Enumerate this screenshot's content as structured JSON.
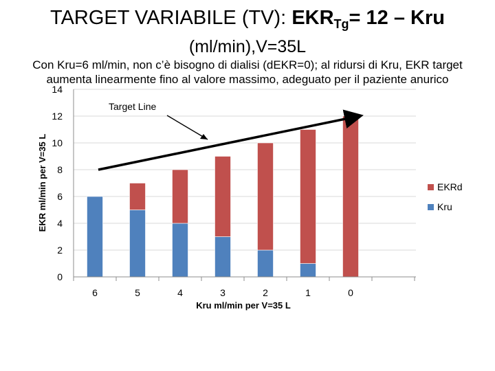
{
  "header": {
    "title_prefix": "TARGET VARIABILE (TV): ",
    "title_bold": "EKR",
    "title_sub": "Tg",
    "title_suffix": "= 12 – Kru",
    "title_line2": "(ml/min),V=35L",
    "description": "Con Kru=6 ml/min, non c’è bisogno di dialisi (dEKR=0); al ridursi di Kru, EKR target aumenta linearmente fino al valore massimo, adeguato per il paziente anurico"
  },
  "colors": {
    "kru": "#4f81bd",
    "ekrd": "#c0504d",
    "grid": "#d9d9d9",
    "axis": "#8c8c8c"
  },
  "chart_data": {
    "type": "bar",
    "stacked": true,
    "categories": [
      "6",
      "5",
      "4",
      "3",
      "2",
      "1",
      "0"
    ],
    "series": [
      {
        "name": "Kru",
        "values": [
          6,
          5,
          4,
          3,
          2,
          1,
          0
        ]
      },
      {
        "name": "EKRd",
        "values": [
          0,
          2,
          4,
          6,
          8,
          10,
          12
        ]
      }
    ],
    "xlabel": "Kru ml/min per V=35 L",
    "ylabel": "EKR ml/min per V=35 L",
    "ylim": [
      0,
      14
    ],
    "yticks": [
      0,
      2,
      4,
      6,
      8,
      10,
      12,
      14
    ],
    "grid": true,
    "legend_position": "right",
    "legend": [
      "EKRd",
      "Kru"
    ],
    "annotation": {
      "label": "Target Line",
      "line_from_value": 8,
      "line_to_value": 12
    }
  }
}
